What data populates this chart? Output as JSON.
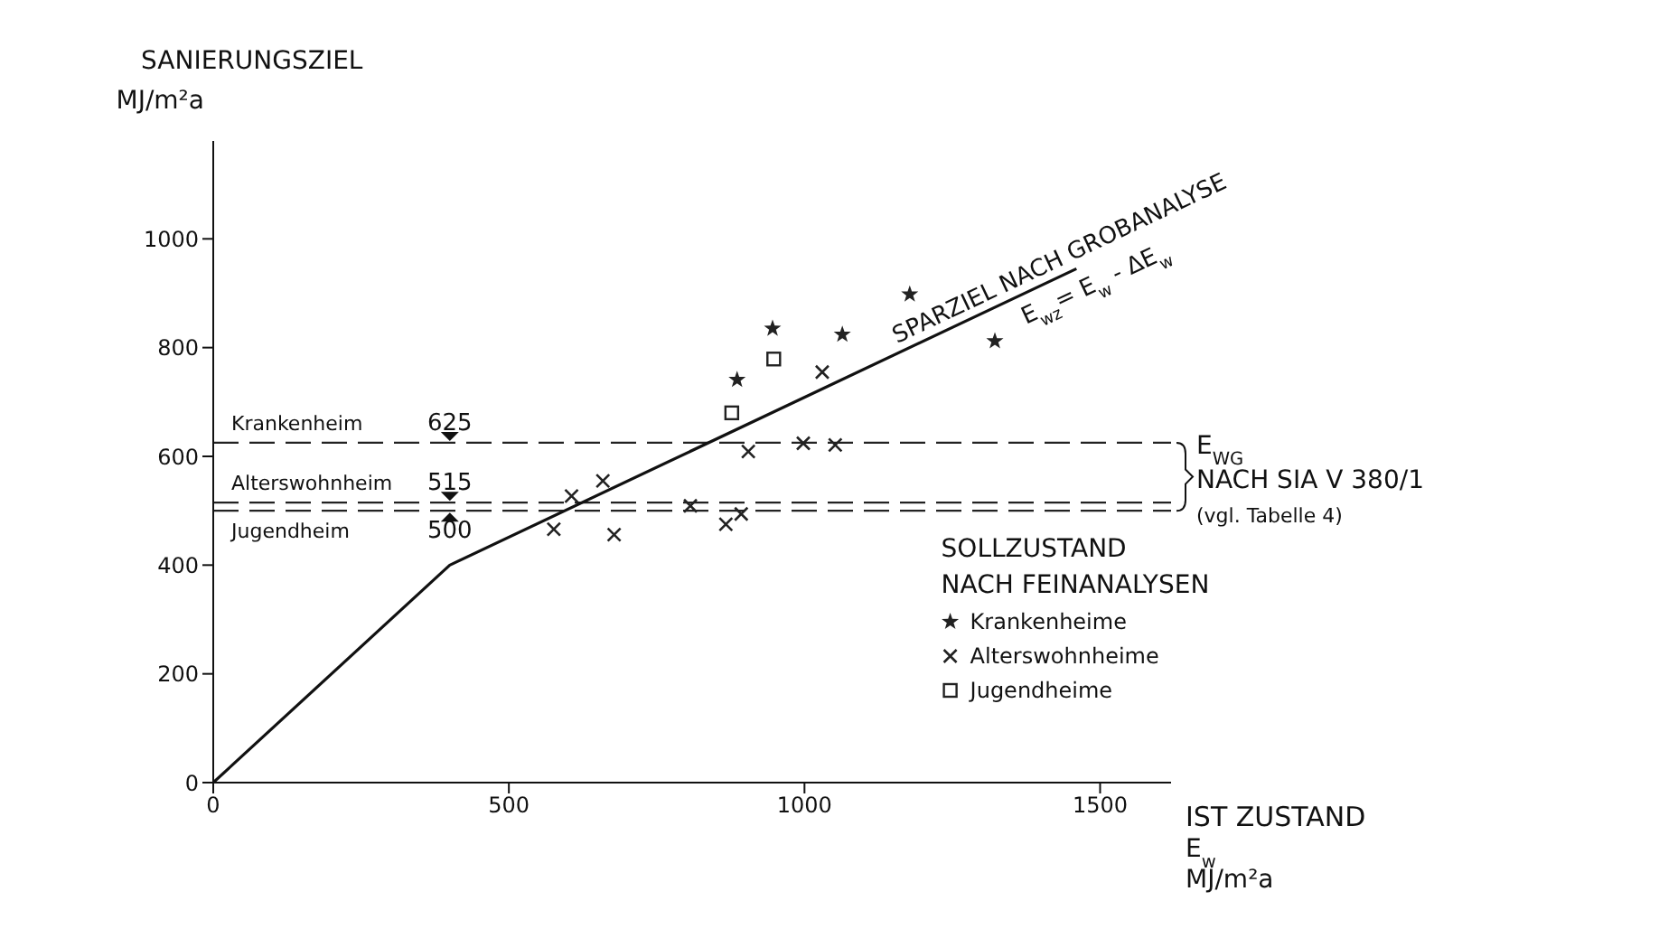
{
  "chart_data": {
    "type": "scatter",
    "xlabel": "IST ZUSTAND\nE$_{w}$\nMJ/m²a",
    "ylabel": "SANIERUNGSZIEL\nMJ/m²a",
    "legend_title": "SOLLZUSTAND\nNACH FEINANALYSEN",
    "xlim": [
      0,
      1620
    ],
    "ylim": [
      0,
      1180
    ],
    "xticks": [
      0,
      500,
      1000,
      1500
    ],
    "yticks": [
      0,
      200,
      400,
      600,
      800,
      1000
    ],
    "grid": false,
    "legend": "bottom right",
    "series": [
      {
        "name": "SPARZIEL NACH GROBANALYSE",
        "type": "line",
        "color": "#111111",
        "marker": "none",
        "line_style": "solid",
        "x": [
          0,
          400,
          1460
        ],
        "values": [
          0,
          400,
          945
        ]
      },
      {
        "name": "Krankenheime",
        "type": "scatter",
        "color": "#222222",
        "marker": "star",
        "x": [
          886,
          946,
          1064,
          1178,
          1322
        ],
        "values": [
          741,
          835,
          824,
          898,
          812
        ]
      },
      {
        "name": "Alterswohnheime",
        "type": "scatter",
        "color": "#222222",
        "marker": "cross",
        "x": [
          1030,
          905,
          998,
          1052,
          606,
          659,
          576,
          678,
          867,
          893,
          807
        ],
        "values": [
          755,
          609,
          624,
          621,
          527,
          555,
          466,
          456,
          475,
          494,
          509
        ]
      },
      {
        "name": "Jugendheime",
        "type": "scatter",
        "color": "#222222",
        "marker": "square",
        "x": [
          948,
          877
        ],
        "values": [
          779,
          680
        ]
      }
    ],
    "ref_lines": [
      {
        "axis": "y",
        "value": 625,
        "label": "Krankenheim",
        "line_style": "dashed",
        "color": "#222222"
      },
      {
        "axis": "y",
        "value": 515,
        "label": "Alterswohnheim",
        "line_style": "dashed",
        "color": "#222222"
      },
      {
        "axis": "y",
        "value": 500,
        "label": "Jugendheim",
        "line_style": "dashed",
        "color": "#222222"
      }
    ],
    "annotations": [
      "E$_{wz}$= E$_{w}$ - ΔE$_{w}$",
      "E$_{WG}$",
      "NACH SIA V 380/1",
      "(vgl. Tabelle 4)",
      "625",
      "515",
      "500"
    ]
  }
}
